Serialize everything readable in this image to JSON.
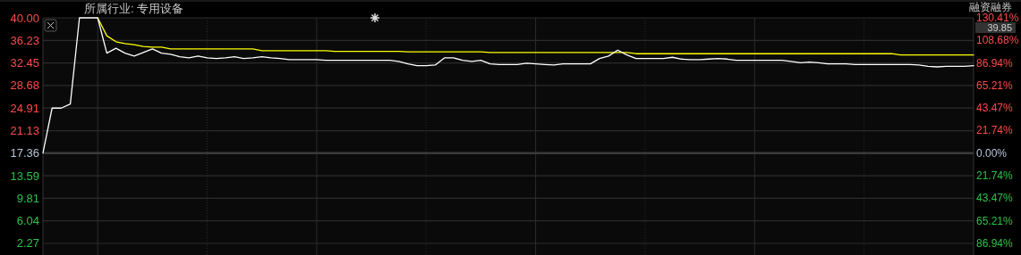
{
  "chart_data": {
    "type": "line",
    "categories": [
      null,
      null,
      null,
      null,
      null,
      null,
      null,
      null,
      null,
      null,
      null,
      null,
      null,
      null,
      null,
      null,
      null,
      null,
      null,
      null,
      null,
      null,
      null,
      null,
      null,
      null,
      null,
      null,
      null,
      null,
      null,
      null,
      null,
      null,
      null,
      null,
      null,
      null,
      null,
      null,
      null,
      null,
      null,
      null,
      null,
      null,
      null,
      null,
      null,
      null,
      null,
      null,
      null,
      null,
      null,
      null,
      null,
      null,
      null,
      null,
      null,
      null,
      null,
      null,
      null,
      null,
      null,
      null,
      null,
      null,
      null,
      null,
      null,
      null,
      null,
      null,
      null,
      null,
      null,
      null,
      null,
      null,
      null,
      null,
      null,
      null,
      null,
      null,
      null,
      null,
      null,
      null,
      null,
      null,
      null,
      null,
      null,
      null,
      null,
      null,
      null,
      null,
      null
    ],
    "series": [
      {
        "color": "#ffffff",
        "values": [
          17.4,
          24.9,
          24.9,
          25.6,
          40.0,
          40.0,
          40.0,
          34.1,
          34.9,
          34.1,
          33.6,
          34.2,
          34.8,
          34.1,
          33.9,
          33.5,
          33.3,
          33.6,
          33.3,
          33.2,
          33.3,
          33.5,
          33.2,
          33.3,
          33.5,
          33.3,
          33.2,
          33.0,
          33.0,
          33.0,
          33.0,
          32.9,
          32.9,
          32.9,
          32.9,
          32.9,
          32.9,
          32.9,
          32.9,
          32.7,
          32.3,
          32.0,
          32.0,
          32.1,
          33.3,
          33.3,
          32.9,
          32.7,
          32.9,
          32.3,
          32.2,
          32.2,
          32.2,
          32.4,
          32.3,
          32.2,
          32.1,
          32.3,
          32.3,
          32.3,
          32.3,
          33.2,
          33.6,
          34.6,
          33.8,
          33.2,
          33.2,
          33.2,
          33.2,
          33.4,
          33.1,
          33.0,
          33.0,
          33.1,
          33.2,
          33.1,
          32.9,
          32.9,
          32.9,
          32.9,
          32.9,
          32.9,
          32.7,
          32.5,
          32.6,
          32.5,
          32.3,
          32.3,
          32.3,
          32.2,
          32.2,
          32.2,
          32.2,
          32.2,
          32.2,
          32.2,
          32.1,
          31.9,
          31.8,
          31.9,
          31.9,
          31.9,
          32.0
        ]
      },
      {
        "color": "#ffff00",
        "values": [
          null,
          null,
          null,
          null,
          null,
          null,
          40.0,
          37.0,
          36.0,
          35.7,
          35.5,
          35.2,
          35.1,
          35.1,
          34.8,
          34.8,
          34.8,
          34.8,
          34.8,
          34.8,
          34.8,
          34.8,
          34.8,
          34.8,
          34.5,
          34.5,
          34.5,
          34.5,
          34.5,
          34.5,
          34.5,
          34.5,
          34.4,
          34.4,
          34.4,
          34.4,
          34.4,
          34.4,
          34.4,
          34.4,
          34.3,
          34.3,
          34.3,
          34.3,
          34.3,
          34.3,
          34.3,
          34.3,
          34.3,
          34.2,
          34.2,
          34.2,
          34.2,
          34.2,
          34.2,
          34.2,
          34.2,
          34.2,
          34.2,
          34.2,
          34.2,
          34.2,
          34.2,
          34.2,
          34.2,
          34.0,
          34.0,
          34.0,
          34.0,
          34.0,
          34.0,
          34.0,
          34.0,
          34.0,
          34.0,
          34.0,
          34.0,
          34.0,
          34.0,
          34.0,
          34.0,
          34.0,
          34.0,
          34.0,
          34.0,
          34.0,
          34.0,
          34.0,
          34.0,
          34.0,
          34.0,
          34.0,
          34.0,
          34.0,
          33.8,
          33.8,
          33.8,
          33.8,
          33.8,
          33.8,
          33.8,
          33.8,
          33.8
        ]
      }
    ],
    "ylim": [
      0.33,
      40.0
    ],
    "yticks": [
      {
        "value": 40.0,
        "label": "40.00"
      },
      36.23,
      32.45,
      28.68,
      24.91,
      21.13,
      17.36,
      13.59,
      9.81,
      6.04,
      2.27
    ],
    "y2lim": [
      -98.1,
      130.41
    ],
    "y2ticks": [
      {
        "value": 130.41,
        "label": "130.41%"
      },
      {
        "value": 108.68,
        "label": "108.68%"
      },
      {
        "value": 86.94,
        "label": "86.94%"
      },
      {
        "value": 65.21,
        "label": "65.21%"
      },
      {
        "value": 43.47,
        "label": "43.47%"
      },
      {
        "value": 21.74,
        "label": "21.74%"
      },
      {
        "value": 0,
        "label": "0.00%"
      },
      {
        "value": -21.74,
        "label": "21.74%"
      },
      {
        "value": -43.47,
        "label": "43.47%"
      },
      {
        "value": -65.21,
        "label": "65.21%"
      },
      {
        "value": -86.94,
        "label": "86.94%"
      }
    ],
    "ref_lines": [
      {
        "axis": "y",
        "value": 17.36,
        "color": "#3a3a3a"
      }
    ],
    "grid": true,
    "annotations": [
      "所属行业: 专用设备",
      "融资融券",
      "39.85"
    ]
  }
}
